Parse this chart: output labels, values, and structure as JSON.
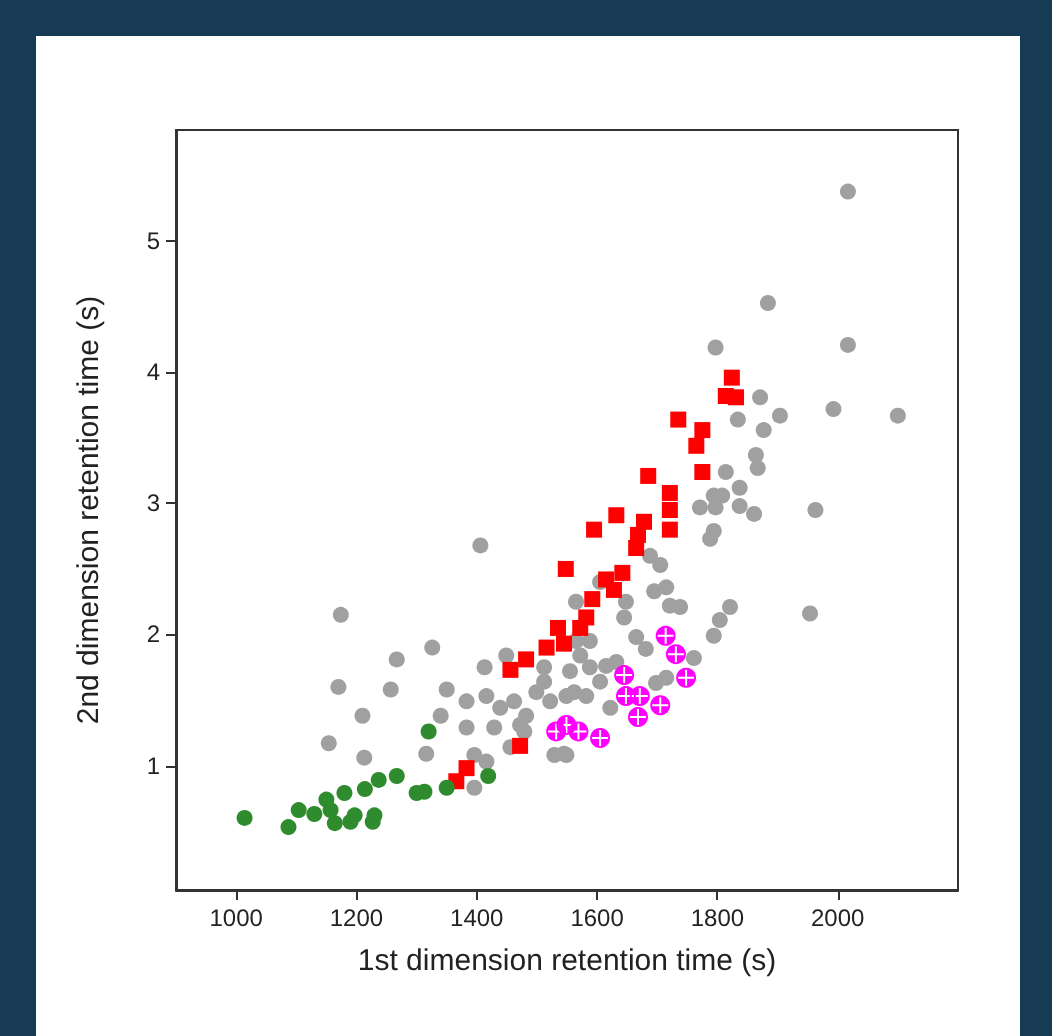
{
  "chart_data": {
    "type": "scatter",
    "xlabel": "1st dimension retention time (s)",
    "ylabel": "2nd dimension retention time (s)",
    "xlim": [
      900,
      2200
    ],
    "ylim": [
      0.05,
      5.85
    ],
    "xticks": [
      1000,
      1200,
      1400,
      1600,
      1800,
      2000
    ],
    "yticks": [
      1,
      2,
      3,
      4,
      5
    ],
    "series": [
      {
        "color": "#a0a0a0",
        "marker": "circle",
        "x": [
          2017,
          1884,
          2017,
          1797,
          1871,
          1904,
          1993,
          2100,
          1834,
          1877,
          1864,
          1867,
          1814,
          1837,
          1794,
          1808,
          1963,
          1771,
          1797,
          1837,
          1861,
          1794,
          1788,
          1688,
          1705,
          1695,
          1715,
          1721,
          1738,
          1821,
          1804,
          1954,
          1794,
          1648,
          1645,
          1681,
          1632,
          1615,
          1588,
          1555,
          1761,
          1715,
          1698,
          1582,
          1562,
          1622,
          1545,
          1605,
          1565,
          1406,
          1174,
          1267,
          1326,
          1170,
          1257,
          1210,
          1154,
          1213,
          1350,
          1340,
          1316,
          1396,
          1413,
          1449,
          1416,
          1439,
          1462,
          1482,
          1383,
          1383,
          1429,
          1472,
          1512,
          1512,
          1522,
          1549,
          1529,
          1549,
          1456,
          1416,
          1396,
          1565,
          1572,
          1499,
          1479,
          1588,
          1605,
          1665
        ],
        "values": [
          5.38,
          4.53,
          4.21,
          4.19,
          3.81,
          3.67,
          3.72,
          3.67,
          3.64,
          3.56,
          3.37,
          3.27,
          3.24,
          3.12,
          3.06,
          3.06,
          2.95,
          2.97,
          2.97,
          2.98,
          2.92,
          2.79,
          2.73,
          2.6,
          2.53,
          2.33,
          2.36,
          2.22,
          2.21,
          2.21,
          2.11,
          2.16,
          1.99,
          2.25,
          2.13,
          1.89,
          1.79,
          1.76,
          1.75,
          1.72,
          1.82,
          1.67,
          1.63,
          1.53,
          1.56,
          1.44,
          1.09,
          2.4,
          1.95,
          2.68,
          2.15,
          1.81,
          1.9,
          1.6,
          1.58,
          1.38,
          1.17,
          1.06,
          1.58,
          1.38,
          1.09,
          1.08,
          1.75,
          1.84,
          1.53,
          1.44,
          1.49,
          1.38,
          1.49,
          1.29,
          1.29,
          1.31,
          1.64,
          1.75,
          1.49,
          1.53,
          1.08,
          1.08,
          1.14,
          1.03,
          0.83,
          2.25,
          1.84,
          1.56,
          1.26,
          1.95,
          1.64,
          1.98
        ]
      },
      {
        "color": "#ff0000",
        "marker": "square",
        "x": [
          1366,
          1383,
          1472,
          1456,
          1482,
          1516,
          1535,
          1545,
          1548,
          1572,
          1582,
          1592,
          1615,
          1628,
          1642,
          1595,
          1632,
          1678,
          1668,
          1665,
          1721,
          1721,
          1685,
          1721,
          1775,
          1765,
          1775,
          1735,
          1824,
          1814,
          1831
        ],
        "values": [
          0.88,
          0.98,
          1.15,
          1.73,
          1.81,
          1.9,
          2.05,
          1.93,
          2.5,
          2.05,
          2.13,
          2.27,
          2.42,
          2.34,
          2.47,
          2.8,
          2.91,
          2.86,
          2.76,
          2.66,
          2.95,
          2.8,
          3.21,
          3.08,
          3.24,
          3.44,
          3.56,
          3.64,
          3.96,
          3.82,
          3.81
        ]
      },
      {
        "color": "#ff00ff",
        "marker": "cross",
        "x": [
          1714,
          1731,
          1748,
          1645,
          1648,
          1671,
          1705,
          1668,
          1605,
          1549,
          1569,
          1532
        ],
        "values": [
          1.99,
          1.85,
          1.67,
          1.69,
          1.53,
          1.53,
          1.46,
          1.37,
          1.21,
          1.31,
          1.26,
          1.26
        ]
      },
      {
        "color": "#2e8b2e",
        "marker": "circle",
        "x": [
          1014,
          1087,
          1104,
          1130,
          1150,
          1157,
          1164,
          1180,
          1190,
          1197,
          1214,
          1227,
          1230,
          1237,
          1267,
          1300,
          1313,
          1320,
          1350,
          1419
        ],
        "values": [
          0.6,
          0.53,
          0.66,
          0.63,
          0.74,
          0.66,
          0.56,
          0.79,
          0.57,
          0.62,
          0.82,
          0.57,
          0.62,
          0.89,
          0.92,
          0.79,
          0.8,
          1.26,
          0.83,
          0.92
        ]
      }
    ]
  }
}
